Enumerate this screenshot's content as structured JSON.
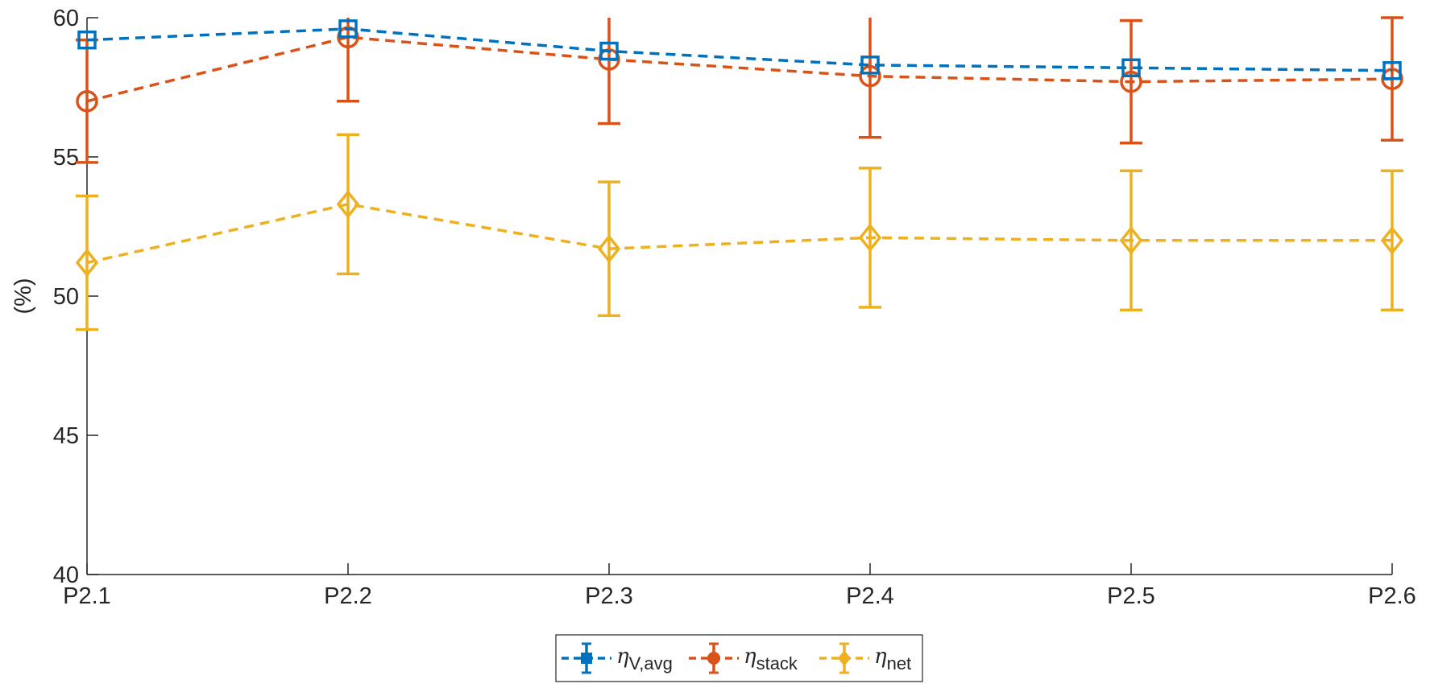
{
  "chart_data": {
    "type": "line",
    "title": "",
    "xlabel": "",
    "ylabel": "(%)",
    "categories": [
      "P2.1",
      "P2.2",
      "P2.3",
      "P2.4",
      "P2.5",
      "P2.6"
    ],
    "ylim": [
      40,
      60
    ],
    "yticks": [
      "40",
      "45",
      "50",
      "55",
      "60"
    ],
    "grid": false,
    "legend_position": "bottom-center",
    "series": [
      {
        "name": "η_V,avg",
        "symbol": "η",
        "subscript": "V,avg",
        "color": "#0072BD",
        "marker": "square",
        "values": [
          59.2,
          59.6,
          58.8,
          58.3,
          58.2,
          58.1
        ],
        "errors": [
          0,
          0,
          0,
          0,
          0,
          0
        ]
      },
      {
        "name": "η_stack",
        "symbol": "η",
        "subscript": "stack",
        "color": "#D95319",
        "marker": "circle",
        "values": [
          57.0,
          59.3,
          58.5,
          57.9,
          57.7,
          57.8
        ],
        "errors": [
          2.2,
          2.3,
          2.3,
          2.2,
          2.2,
          2.2
        ]
      },
      {
        "name": "η_net",
        "symbol": "η",
        "subscript": "net",
        "color": "#EDB120",
        "marker": "diamond",
        "values": [
          51.2,
          53.3,
          51.7,
          52.1,
          52.0,
          52.0
        ],
        "errors": [
          2.4,
          2.5,
          2.4,
          2.5,
          2.5,
          2.5
        ]
      }
    ]
  }
}
